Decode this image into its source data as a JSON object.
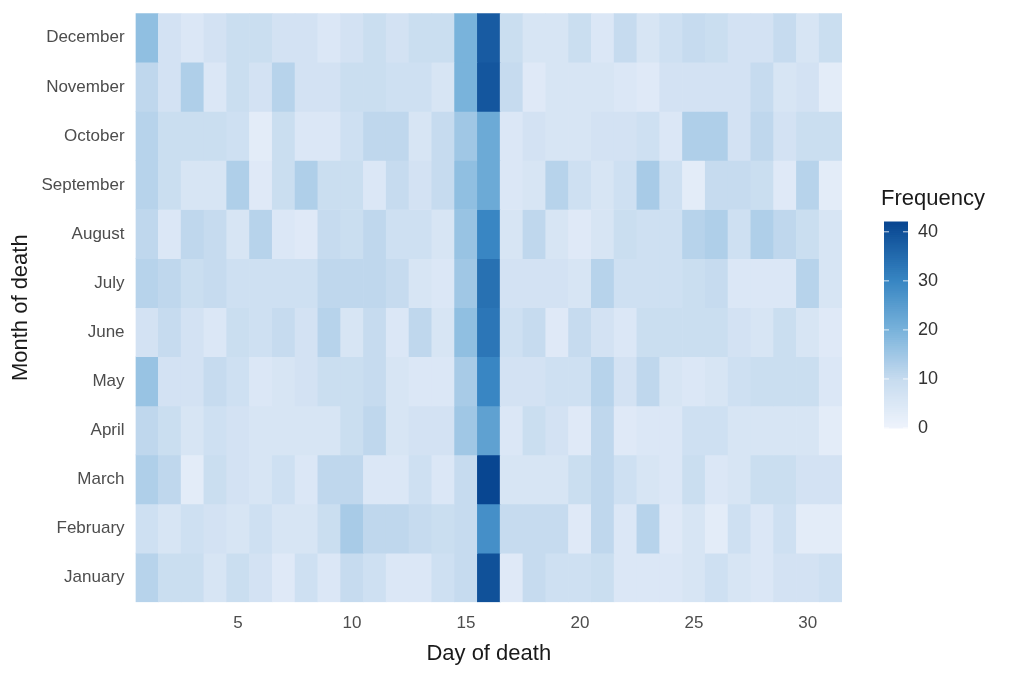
{
  "chart_data": {
    "type": "heatmap",
    "xlabel": "Day of death",
    "ylabel": "Month of death",
    "clabel": "Frequency",
    "categories": [
      null,
      null,
      null,
      null,
      "5",
      null,
      null,
      null,
      null,
      "10",
      null,
      null,
      null,
      null,
      "15",
      null,
      null,
      null,
      null,
      "20",
      null,
      null,
      null,
      null,
      "25",
      null,
      null,
      null,
      null,
      "30",
      null
    ],
    "y_categories": [
      "December",
      "November",
      "October",
      "September",
      "August",
      "July",
      "June",
      "May",
      "April",
      "March",
      "February",
      "January"
    ],
    "cells": [
      [
        17,
        7,
        5,
        7,
        9,
        9,
        7,
        7,
        5,
        7,
        9,
        7,
        9,
        9,
        20,
        38,
        9,
        6,
        6,
        9,
        5,
        10,
        6,
        8,
        10,
        9,
        7,
        7,
        10,
        6,
        9
      ],
      [
        11,
        7,
        13,
        5,
        9,
        7,
        12,
        7,
        7,
        9,
        9,
        8,
        8,
        6,
        20,
        39,
        10,
        4,
        6,
        6,
        6,
        5,
        4,
        7,
        7,
        7,
        7,
        10,
        6,
        7,
        3
      ],
      [
        12,
        9,
        9,
        9,
        8,
        3,
        9,
        5,
        5,
        8,
        11,
        11,
        6,
        10,
        15,
        22,
        5,
        7,
        6,
        6,
        7,
        7,
        8,
        5,
        13,
        13,
        7,
        11,
        7,
        9,
        9
      ],
      [
        12,
        9,
        6,
        6,
        13,
        4,
        9,
        13,
        9,
        9,
        5,
        10,
        7,
        10,
        17,
        22,
        5,
        6,
        12,
        8,
        6,
        8,
        14,
        8,
        3,
        10,
        10,
        9,
        4,
        12,
        3
      ],
      [
        11,
        5,
        11,
        10,
        6,
        12,
        5,
        4,
        10,
        9,
        11,
        8,
        8,
        6,
        16,
        30,
        6,
        11,
        6,
        4,
        6,
        9,
        8,
        8,
        12,
        13,
        8,
        13,
        11,
        9,
        6
      ],
      [
        12,
        11,
        9,
        10,
        8,
        8,
        8,
        8,
        11,
        11,
        11,
        10,
        6,
        5,
        15,
        34,
        7,
        7,
        7,
        6,
        12,
        8,
        8,
        8,
        9,
        10,
        5,
        5,
        5,
        12,
        6
      ],
      [
        7,
        10,
        7,
        5,
        9,
        8,
        10,
        7,
        12,
        6,
        10,
        5,
        11,
        6,
        17,
        33,
        8,
        10,
        4,
        10,
        7,
        5,
        9,
        9,
        9,
        9,
        7,
        6,
        9,
        6,
        4
      ],
      [
        16,
        7,
        7,
        10,
        8,
        5,
        6,
        7,
        9,
        9,
        10,
        6,
        5,
        5,
        14,
        30,
        7,
        7,
        8,
        8,
        12,
        7,
        11,
        6,
        5,
        6,
        8,
        9,
        9,
        9,
        5
      ],
      [
        11,
        9,
        6,
        8,
        7,
        6,
        6,
        6,
        6,
        9,
        11,
        6,
        7,
        7,
        15,
        24,
        5,
        9,
        7,
        4,
        11,
        4,
        5,
        5,
        8,
        8,
        6,
        6,
        6,
        6,
        3
      ],
      [
        13,
        11,
        3,
        9,
        7,
        6,
        8,
        5,
        11,
        11,
        5,
        5,
        8,
        5,
        10,
        42,
        6,
        6,
        6,
        9,
        11,
        8,
        6,
        5,
        9,
        5,
        6,
        9,
        9,
        7,
        7
      ],
      [
        8,
        6,
        8,
        7,
        6,
        8,
        6,
        6,
        9,
        14,
        11,
        11,
        10,
        9,
        10,
        28,
        10,
        10,
        10,
        4,
        11,
        5,
        12,
        4,
        6,
        3,
        8,
        5,
        8,
        3,
        3
      ],
      [
        12,
        9,
        9,
        6,
        9,
        7,
        4,
        8,
        5,
        10,
        8,
        5,
        5,
        8,
        10,
        40,
        4,
        10,
        8,
        8,
        9,
        5,
        5,
        5,
        6,
        8,
        6,
        5,
        7,
        7,
        8
      ]
    ],
    "clim": [
      0,
      42
    ],
    "cticks": [
      0,
      10,
      20,
      30,
      40
    ]
  }
}
